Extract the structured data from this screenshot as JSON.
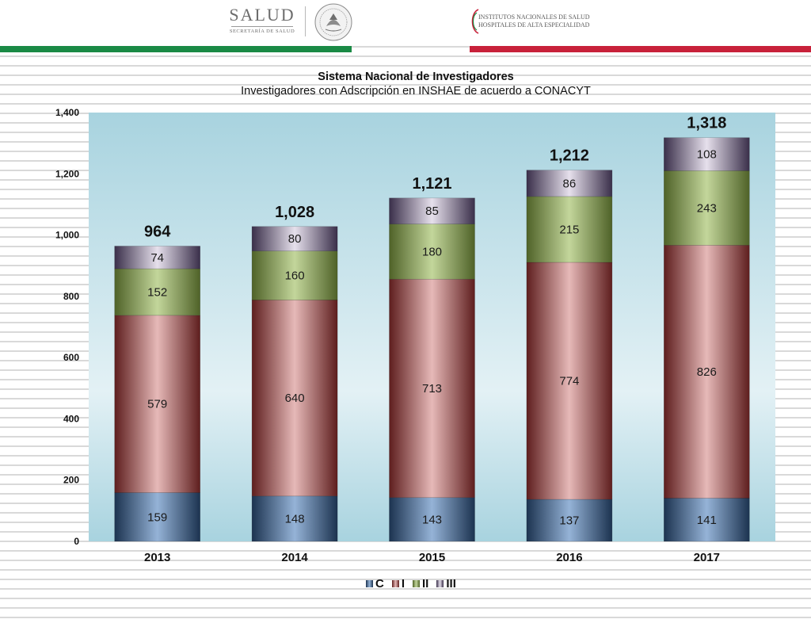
{
  "header": {
    "logo_left_word": "SALUD",
    "logo_left_sub": "SECRETARÍA DE SALUD",
    "logo_right_line1": "INSTITUTOS NACIONALES DE SALUD",
    "logo_right_line2": "HOSPITALES DE ALTA ESPECIALIDAD",
    "seal_icon": "mexican-coat-of-arms-seal"
  },
  "colors": {
    "accent_green": "#1a8a45",
    "accent_red": "#c8213a",
    "series": {
      "C": [
        "#1c3350",
        "#95b3d7"
      ],
      "I": [
        "#5e1e1e",
        "#e6b9b8"
      ],
      "II": [
        "#4f6228",
        "#c3d69b"
      ],
      "III": [
        "#3a2f4a",
        "#e6e0ec"
      ]
    },
    "plot_area": [
      "#a8d3df",
      "#e3f1f5"
    ]
  },
  "chart_data": {
    "type": "bar",
    "stacked": true,
    "title": "Sistema Nacional de Investigadores",
    "subtitle": "Investigadores con Adscripción en INSHAE de acuerdo a CONACYT",
    "categories": [
      "2013",
      "2014",
      "2015",
      "2016",
      "2017"
    ],
    "series": [
      {
        "name": "C",
        "values": [
          159,
          148,
          143,
          137,
          141
        ]
      },
      {
        "name": "I",
        "values": [
          579,
          640,
          713,
          774,
          826
        ]
      },
      {
        "name": "II",
        "values": [
          152,
          160,
          180,
          215,
          243
        ]
      },
      {
        "name": "III",
        "values": [
          74,
          80,
          85,
          86,
          108
        ]
      }
    ],
    "totals": [
      "964",
      "1,028",
      "1,121",
      "1,212",
      "1,318"
    ],
    "ylim": [
      0,
      1400
    ],
    "yticks": [
      0,
      200,
      400,
      600,
      800,
      1000,
      1200,
      1400
    ],
    "ytick_labels": [
      "0",
      "200",
      "400",
      "600",
      "800",
      "1,000",
      "1,200",
      "1,400"
    ],
    "xlabel": "",
    "ylabel": "",
    "grid": false,
    "legend_position": "bottom"
  }
}
